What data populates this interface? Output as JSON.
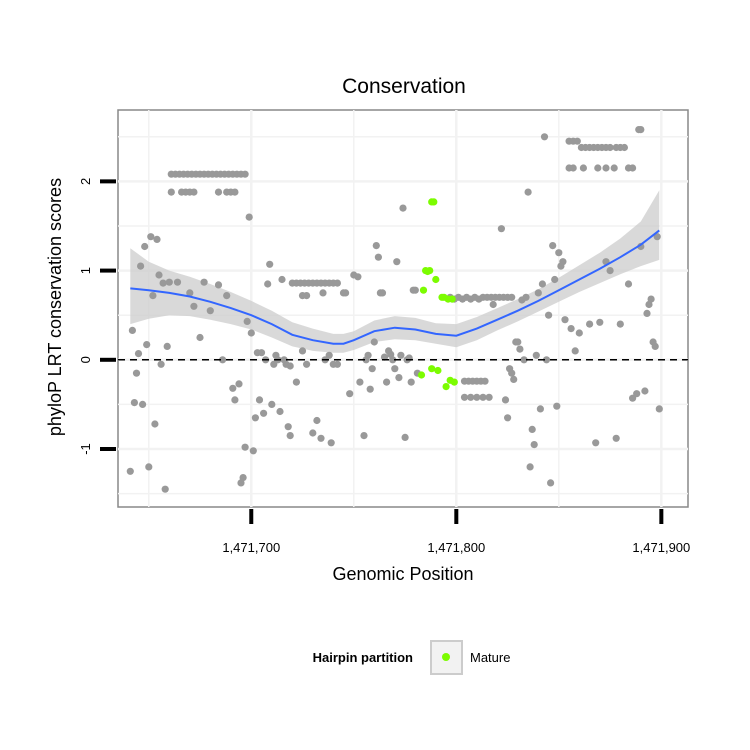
{
  "chart_data": {
    "type": "scatter",
    "title": "Conservation",
    "xlabel": "Genomic Position",
    "ylabel": "phyloP LRT conservation scores",
    "xlim": [
      1471635,
      1471913
    ],
    "ylim": [
      -1.65,
      2.8
    ],
    "x_ticks": [
      1471700,
      1471800,
      1471900
    ],
    "x_tick_labels": [
      "1,471,700",
      "1,471,800",
      "1,471,900"
    ],
    "y_ticks": [
      -1,
      0,
      1,
      2
    ],
    "y_tick_labels": [
      "-1",
      "0",
      "1",
      "2"
    ],
    "reference_line": {
      "y": 0,
      "style": "dashed"
    },
    "grid": true,
    "legend": {
      "title": "Hairpin partition",
      "position": "bottom",
      "entries": [
        "Mature"
      ]
    },
    "colors": {
      "other": "#999999",
      "mature": "#7cfc00",
      "smooth": "#3366ff",
      "ribbon": "#cccccc"
    },
    "series": [
      {
        "name": "",
        "color": "#999999",
        "points": [
          [
            1471641,
            -1.25
          ],
          [
            1471642,
            0.33
          ],
          [
            1471643,
            -0.48
          ],
          [
            1471644,
            -0.15
          ],
          [
            1471645,
            0.07
          ],
          [
            1471646,
            1.05
          ],
          [
            1471647,
            -0.5
          ],
          [
            1471648,
            1.27
          ],
          [
            1471649,
            0.17
          ],
          [
            1471650,
            -1.2
          ],
          [
            1471651,
            1.38
          ],
          [
            1471652,
            0.72
          ],
          [
            1471653,
            -0.72
          ],
          [
            1471654,
            1.35
          ],
          [
            1471655,
            0.95
          ],
          [
            1471656,
            -0.05
          ],
          [
            1471657,
            0.86
          ],
          [
            1471658,
            -1.45
          ],
          [
            1471659,
            0.15
          ],
          [
            1471660,
            0.87
          ],
          [
            1471661,
            1.88
          ],
          [
            1471661,
            2.08
          ],
          [
            1471663,
            2.08
          ],
          [
            1471665,
            2.08
          ],
          [
            1471667,
            2.08
          ],
          [
            1471669,
            2.08
          ],
          [
            1471671,
            2.08
          ],
          [
            1471673,
            2.08
          ],
          [
            1471675,
            2.08
          ],
          [
            1471677,
            2.08
          ],
          [
            1471679,
            2.08
          ],
          [
            1471681,
            2.08
          ],
          [
            1471683,
            2.08
          ],
          [
            1471685,
            2.08
          ],
          [
            1471687,
            2.08
          ],
          [
            1471689,
            2.08
          ],
          [
            1471691,
            2.08
          ],
          [
            1471693,
            2.08
          ],
          [
            1471695,
            2.08
          ],
          [
            1471697,
            2.08
          ],
          [
            1471666,
            1.88
          ],
          [
            1471668,
            1.88
          ],
          [
            1471670,
            1.88
          ],
          [
            1471672,
            1.88
          ],
          [
            1471684,
            1.88
          ],
          [
            1471688,
            1.88
          ],
          [
            1471690,
            1.88
          ],
          [
            1471692,
            1.88
          ],
          [
            1471664,
            0.87
          ],
          [
            1471670,
            0.75
          ],
          [
            1471672,
            0.6
          ],
          [
            1471675,
            0.25
          ],
          [
            1471677,
            0.87
          ],
          [
            1471680,
            0.55
          ],
          [
            1471684,
            0.84
          ],
          [
            1471686,
            0.0
          ],
          [
            1471688,
            0.72
          ],
          [
            1471691,
            -0.32
          ],
          [
            1471692,
            -0.45
          ],
          [
            1471694,
            -0.27
          ],
          [
            1471695,
            -1.38
          ],
          [
            1471696,
            -1.32
          ],
          [
            1471697,
            -0.98
          ],
          [
            1471698,
            0.43
          ],
          [
            1471699,
            1.6
          ],
          [
            1471700,
            0.3
          ],
          [
            1471701,
            -1.02
          ],
          [
            1471702,
            -0.65
          ],
          [
            1471703,
            0.08
          ],
          [
            1471704,
            -0.45
          ],
          [
            1471705,
            0.08
          ],
          [
            1471706,
            -0.6
          ],
          [
            1471707,
            0.0
          ],
          [
            1471708,
            0.85
          ],
          [
            1471709,
            1.07
          ],
          [
            1471710,
            -0.5
          ],
          [
            1471711,
            -0.05
          ],
          [
            1471712,
            0.05
          ],
          [
            1471713,
            0.0
          ],
          [
            1471714,
            -0.58
          ],
          [
            1471715,
            0.9
          ],
          [
            1471716,
            0.0
          ],
          [
            1471717,
            -0.05
          ],
          [
            1471718,
            -0.75
          ],
          [
            1471719,
            -0.07
          ],
          [
            1471720,
            0.86
          ],
          [
            1471722,
            0.86
          ],
          [
            1471724,
            0.86
          ],
          [
            1471726,
            0.86
          ],
          [
            1471728,
            0.86
          ],
          [
            1471730,
            0.86
          ],
          [
            1471732,
            0.86
          ],
          [
            1471734,
            0.86
          ],
          [
            1471736,
            0.86
          ],
          [
            1471738,
            0.86
          ],
          [
            1471740,
            0.86
          ],
          [
            1471742,
            0.86
          ],
          [
            1471725,
            0.72
          ],
          [
            1471727,
            0.72
          ],
          [
            1471735,
            0.75
          ],
          [
            1471719,
            -0.85
          ],
          [
            1471722,
            -0.25
          ],
          [
            1471725,
            0.1
          ],
          [
            1471727,
            -0.05
          ],
          [
            1471730,
            -0.82
          ],
          [
            1471732,
            -0.68
          ],
          [
            1471734,
            -0.88
          ],
          [
            1471736,
            0.0
          ],
          [
            1471738,
            0.05
          ],
          [
            1471739,
            -0.93
          ],
          [
            1471740,
            -0.05
          ],
          [
            1471742,
            -0.05
          ],
          [
            1471745,
            0.75
          ],
          [
            1471746,
            0.75
          ],
          [
            1471748,
            -0.38
          ],
          [
            1471750,
            0.95
          ],
          [
            1471752,
            0.93
          ],
          [
            1471753,
            -0.25
          ],
          [
            1471755,
            -0.85
          ],
          [
            1471756,
            0.0
          ],
          [
            1471757,
            0.05
          ],
          [
            1471758,
            -0.33
          ],
          [
            1471759,
            -0.1
          ],
          [
            1471760,
            0.2
          ],
          [
            1471761,
            1.28
          ],
          [
            1471762,
            1.15
          ],
          [
            1471763,
            0.75
          ],
          [
            1471764,
            0.75
          ],
          [
            1471765,
            0.03
          ],
          [
            1471766,
            -0.25
          ],
          [
            1471767,
            0.1
          ],
          [
            1471768,
            0.06
          ],
          [
            1471769,
            0.0
          ],
          [
            1471770,
            -0.1
          ],
          [
            1471771,
            1.1
          ],
          [
            1471772,
            -0.2
          ],
          [
            1471773,
            0.05
          ],
          [
            1471774,
            1.7
          ],
          [
            1471775,
            -0.87
          ],
          [
            1471776,
            0.0
          ],
          [
            1471777,
            0.02
          ],
          [
            1471778,
            -0.25
          ],
          [
            1471779,
            0.78
          ],
          [
            1471780,
            0.78
          ],
          [
            1471781,
            -0.15
          ],
          [
            1471797,
            0.7
          ],
          [
            1471799,
            0.68
          ],
          [
            1471801,
            0.7
          ],
          [
            1471803,
            0.68
          ],
          [
            1471805,
            0.7
          ],
          [
            1471807,
            0.68
          ],
          [
            1471809,
            0.7
          ],
          [
            1471811,
            0.68
          ],
          [
            1471813,
            0.7
          ],
          [
            1471815,
            0.7
          ],
          [
            1471817,
            0.7
          ],
          [
            1471819,
            0.7
          ],
          [
            1471821,
            0.7
          ],
          [
            1471823,
            0.7
          ],
          [
            1471825,
            0.7
          ],
          [
            1471827,
            0.7
          ],
          [
            1471804,
            -0.24
          ],
          [
            1471806,
            -0.24
          ],
          [
            1471808,
            -0.24
          ],
          [
            1471810,
            -0.24
          ],
          [
            1471812,
            -0.24
          ],
          [
            1471814,
            -0.24
          ],
          [
            1471804,
            -0.42
          ],
          [
            1471807,
            -0.42
          ],
          [
            1471810,
            -0.42
          ],
          [
            1471813,
            -0.42
          ],
          [
            1471816,
            -0.42
          ],
          [
            1471818,
            0.62
          ],
          [
            1471822,
            1.47
          ],
          [
            1471824,
            -0.45
          ],
          [
            1471825,
            -0.65
          ],
          [
            1471826,
            -0.1
          ],
          [
            1471827,
            -0.15
          ],
          [
            1471828,
            -0.22
          ],
          [
            1471829,
            0.2
          ],
          [
            1471830,
            0.2
          ],
          [
            1471831,
            0.12
          ],
          [
            1471832,
            0.67
          ],
          [
            1471833,
            0.0
          ],
          [
            1471834,
            0.7
          ],
          [
            1471835,
            1.88
          ],
          [
            1471836,
            -1.2
          ],
          [
            1471837,
            -0.78
          ],
          [
            1471838,
            -0.95
          ],
          [
            1471839,
            0.05
          ],
          [
            1471840,
            0.75
          ],
          [
            1471841,
            -0.55
          ],
          [
            1471842,
            0.85
          ],
          [
            1471843,
            2.5
          ],
          [
            1471844,
            0.0
          ],
          [
            1471845,
            0.5
          ],
          [
            1471846,
            -1.38
          ],
          [
            1471847,
            1.28
          ],
          [
            1471848,
            0.9
          ],
          [
            1471849,
            -0.52
          ],
          [
            1471850,
            1.2
          ],
          [
            1471851,
            1.05
          ],
          [
            1471852,
            1.1
          ],
          [
            1471853,
            0.45
          ],
          [
            1471855,
            2.45
          ],
          [
            1471857,
            2.45
          ],
          [
            1471859,
            2.45
          ],
          [
            1471861,
            2.38
          ],
          [
            1471863,
            2.38
          ],
          [
            1471865,
            2.38
          ],
          [
            1471867,
            2.38
          ],
          [
            1471869,
            2.38
          ],
          [
            1471871,
            2.38
          ],
          [
            1471873,
            2.38
          ],
          [
            1471875,
            2.38
          ],
          [
            1471878,
            2.38
          ],
          [
            1471880,
            2.38
          ],
          [
            1471882,
            2.38
          ],
          [
            1471889,
            2.58
          ],
          [
            1471890,
            2.58
          ],
          [
            1471855,
            2.15
          ],
          [
            1471857,
            2.15
          ],
          [
            1471862,
            2.15
          ],
          [
            1471869,
            2.15
          ],
          [
            1471873,
            2.15
          ],
          [
            1471877,
            2.15
          ],
          [
            1471884,
            2.15
          ],
          [
            1471886,
            2.15
          ],
          [
            1471856,
            0.35
          ],
          [
            1471858,
            0.1
          ],
          [
            1471860,
            0.3
          ],
          [
            1471865,
            0.4
          ],
          [
            1471868,
            -0.93
          ],
          [
            1471870,
            0.42
          ],
          [
            1471873,
            1.1
          ],
          [
            1471875,
            1.0
          ],
          [
            1471878,
            -0.88
          ],
          [
            1471880,
            0.4
          ],
          [
            1471884,
            0.85
          ],
          [
            1471886,
            -0.43
          ],
          [
            1471888,
            -0.38
          ],
          [
            1471890,
            1.27
          ],
          [
            1471892,
            -0.35
          ],
          [
            1471893,
            0.52
          ],
          [
            1471894,
            0.62
          ],
          [
            1471895,
            0.68
          ],
          [
            1471896,
            0.2
          ],
          [
            1471897,
            0.15
          ],
          [
            1471898,
            1.38
          ],
          [
            1471899,
            -0.55
          ]
        ]
      },
      {
        "name": "Mature",
        "color": "#7cfc00",
        "points": [
          [
            1471783,
            -0.17
          ],
          [
            1471784,
            0.78
          ],
          [
            1471785,
            1.0
          ],
          [
            1471786,
            0.99
          ],
          [
            1471787,
            1.0
          ],
          [
            1471788,
            -0.1
          ],
          [
            1471788,
            1.77
          ],
          [
            1471789,
            1.77
          ],
          [
            1471790,
            0.9
          ],
          [
            1471791,
            -0.12
          ],
          [
            1471793,
            0.7
          ],
          [
            1471794,
            0.7
          ],
          [
            1471795,
            -0.3
          ],
          [
            1471796,
            0.68
          ],
          [
            1471797,
            -0.23
          ],
          [
            1471798,
            0.68
          ],
          [
            1471799,
            -0.25
          ]
        ]
      }
    ],
    "smooth": {
      "method": "loess",
      "x": [
        1471641,
        1471650,
        1471660,
        1471670,
        1471680,
        1471690,
        1471700,
        1471710,
        1471720,
        1471730,
        1471740,
        1471745,
        1471750,
        1471760,
        1471770,
        1471780,
        1471790,
        1471800,
        1471810,
        1471820,
        1471830,
        1471840,
        1471850,
        1471860,
        1471870,
        1471880,
        1471890,
        1471899
      ],
      "y": [
        0.8,
        0.78,
        0.75,
        0.71,
        0.65,
        0.58,
        0.5,
        0.4,
        0.28,
        0.22,
        0.18,
        0.18,
        0.22,
        0.32,
        0.36,
        0.34,
        0.29,
        0.27,
        0.35,
        0.45,
        0.55,
        0.66,
        0.78,
        0.9,
        1.02,
        1.15,
        1.29,
        1.45
      ],
      "lower": [
        0.4,
        0.46,
        0.5,
        0.49,
        0.45,
        0.4,
        0.34,
        0.25,
        0.15,
        0.1,
        0.08,
        0.08,
        0.11,
        0.2,
        0.23,
        0.22,
        0.18,
        0.14,
        0.22,
        0.33,
        0.43,
        0.54,
        0.65,
        0.76,
        0.86,
        0.96,
        1.05,
        1.12
      ],
      "upper": [
        1.25,
        1.1,
        1.0,
        0.93,
        0.85,
        0.76,
        0.66,
        0.55,
        0.42,
        0.35,
        0.29,
        0.29,
        0.32,
        0.44,
        0.49,
        0.47,
        0.41,
        0.4,
        0.48,
        0.58,
        0.68,
        0.79,
        0.92,
        1.06,
        1.2,
        1.36,
        1.55,
        1.9
      ]
    }
  }
}
